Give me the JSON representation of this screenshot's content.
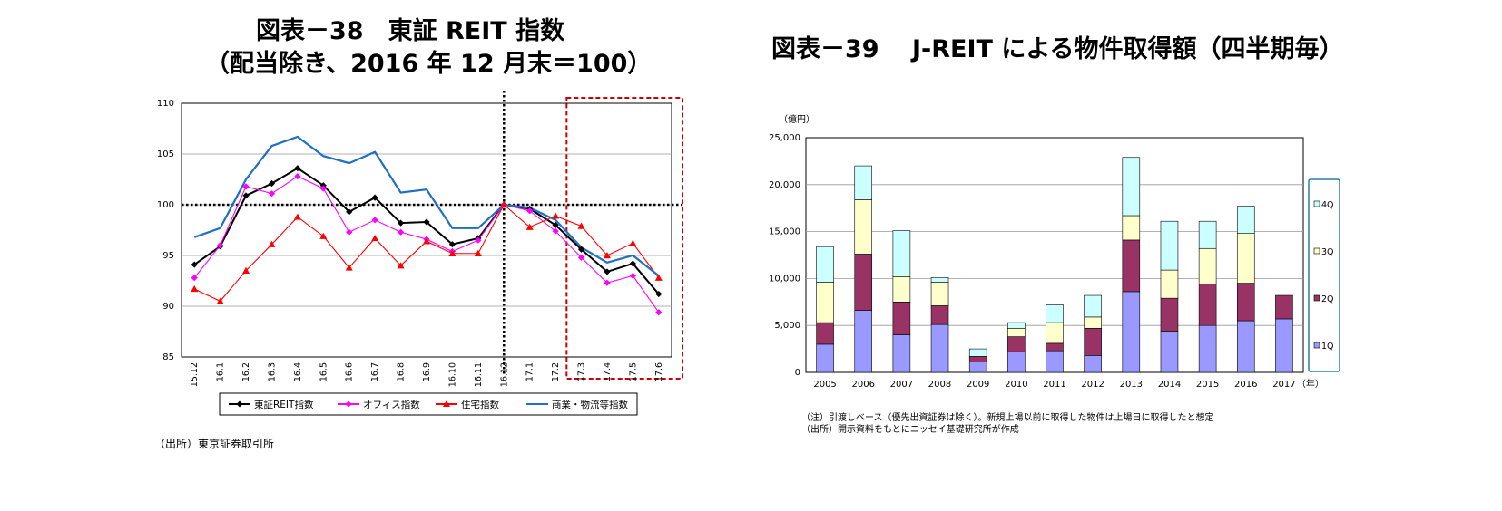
{
  "chart_data": [
    {
      "type": "line",
      "title": "図表－38　東証 REIT 指数",
      "subtitle": "（配当除き、2016 年 12 月末＝100）",
      "source": "（出所）東京証券取引所",
      "ylim": [
        85,
        110
      ],
      "yticks": [
        85,
        90,
        95,
        100,
        105,
        110
      ],
      "categories": [
        "15.12",
        "16.1",
        "16.2",
        "16.3",
        "16.4",
        "16.5",
        "16.6",
        "16.7",
        "16.8",
        "16.9",
        "16.10",
        "16.11",
        "16.12",
        "17.1",
        "17.2",
        "17.3",
        "17.4",
        "17.5",
        "17.6"
      ],
      "reference_line": 100,
      "vertical_marker": "16.12",
      "highlight_range": [
        "17.3",
        "17.6"
      ],
      "legend_position": "bottom",
      "series": [
        {
          "name": "東証REIT指数",
          "color": "#000000",
          "marker": "diamond",
          "values": [
            94.1,
            95.9,
            100.9,
            102.1,
            103.6,
            101.9,
            99.3,
            100.7,
            98.2,
            98.3,
            96.1,
            96.7,
            100,
            99.6,
            98.0,
            95.6,
            93.4,
            94.2,
            91.2
          ]
        },
        {
          "name": "オフィス指数",
          "color": "#ff00ff",
          "marker": "diamond",
          "values": [
            92.8,
            96.0,
            101.8,
            101.1,
            102.8,
            101.6,
            97.3,
            98.5,
            97.3,
            96.6,
            95.4,
            96.5,
            100,
            99.4,
            97.4,
            94.8,
            92.3,
            93.0,
            89.4
          ]
        },
        {
          "name": "住宅指数",
          "color": "#ff0000",
          "marker": "triangle",
          "values": [
            91.7,
            90.5,
            93.5,
            96.1,
            98.8,
            96.9,
            93.8,
            96.7,
            94.0,
            96.4,
            95.2,
            95.2,
            100,
            97.8,
            98.9,
            97.9,
            95.0,
            96.2,
            92.8
          ]
        },
        {
          "name": "商業・物流等指数",
          "color": "#1f6fc6",
          "marker": "none",
          "values": [
            96.8,
            97.7,
            102.5,
            105.8,
            106.7,
            104.8,
            104.1,
            105.2,
            101.2,
            101.5,
            97.7,
            97.7,
            100,
            99.7,
            98.5,
            95.8,
            94.3,
            95.0,
            93.0
          ]
        }
      ]
    },
    {
      "type": "bar",
      "stacked": true,
      "title": "図表－39　 J-REIT による物件取得額（四半期毎）",
      "unit_label": "（億円）",
      "ylim": [
        0,
        25000
      ],
      "yticks": [
        "0",
        "5,000",
        "10,000",
        "15,000",
        "20,000",
        "25,000"
      ],
      "categories": [
        "2005",
        "2006",
        "2007",
        "2008",
        "2009",
        "2010",
        "2011",
        "2012",
        "2013",
        "2014",
        "2015",
        "2016",
        "2017"
      ],
      "x_suffix": "（年）",
      "legend_position": "right",
      "legend_order": [
        "4Q",
        "3Q",
        "2Q",
        "1Q"
      ],
      "series": [
        {
          "name": "1Q",
          "color": "#9999ff",
          "values": [
            3000,
            6600,
            4000,
            5100,
            1100,
            2200,
            2300,
            1800,
            8600,
            4400,
            5000,
            5500,
            5700
          ]
        },
        {
          "name": "2Q",
          "color": "#993366",
          "values": [
            2300,
            6000,
            3500,
            2000,
            600,
            1600,
            800,
            2900,
            5500,
            3500,
            4400,
            4000,
            2500
          ]
        },
        {
          "name": "3Q",
          "color": "#ffffcc",
          "values": [
            4300,
            5800,
            2700,
            2500,
            0,
            900,
            2200,
            1200,
            2600,
            3000,
            3800,
            5300,
            0
          ]
        },
        {
          "name": "4Q",
          "color": "#ccffff",
          "values": [
            3800,
            3600,
            4900,
            500,
            800,
            600,
            1900,
            2300,
            6200,
            5200,
            2900,
            2900,
            0
          ]
        }
      ],
      "notes": [
        "（注）引渡しベース（優先出資証券は除く）。新規上場以前に取得した物件は上場日に取得したと想定",
        "（出所）開示資料をもとにニッセイ基礎研究所が作成"
      ]
    }
  ]
}
